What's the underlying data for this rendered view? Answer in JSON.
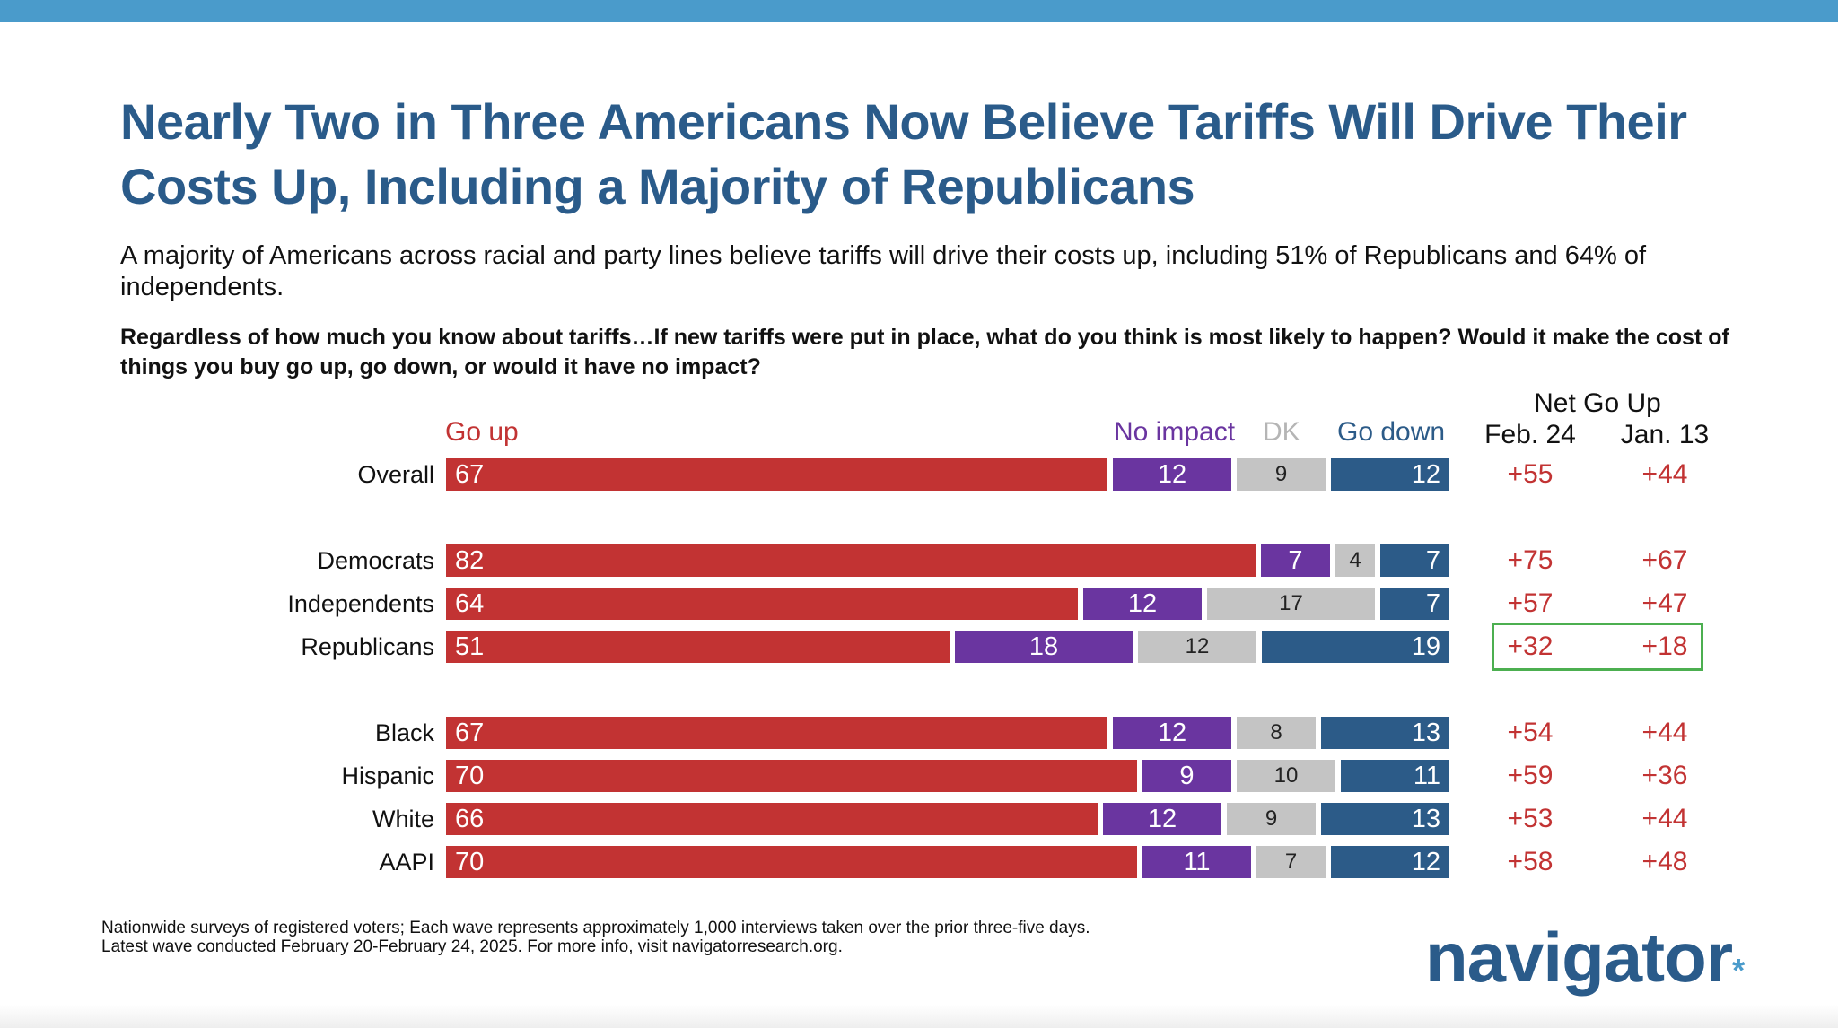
{
  "title": "Nearly Two in Three Americans Now Believe Tariffs Will Drive Their Costs Up, Including a Majority of Republicans",
  "subtitle": "A majority of Americans across racial and party lines believe tariffs will drive their costs up, including 51% of Republicans and 64% of independents.",
  "question": "Regardless of how much you know about tariffs…If new tariffs were put in place, what do you think is most likely to happen? Would it make the cost of things you buy go up, go down, or would it have no impact?",
  "colors": {
    "go_up": "#c23333",
    "no_impact": "#6a35a0",
    "dk": "#c4c4c4",
    "go_down": "#2c5b88",
    "net": "#c23333",
    "highlight": "#4caf50"
  },
  "chart_data": {
    "type": "bar",
    "orientation": "horizontal",
    "stacked": true,
    "categories": [
      "Overall",
      "Democrats",
      "Independents",
      "Republicans",
      "Black",
      "Hispanic",
      "White",
      "AAPI"
    ],
    "series": [
      {
        "name": "Go up",
        "values": [
          67,
          82,
          64,
          51,
          67,
          70,
          66,
          70
        ]
      },
      {
        "name": "No impact",
        "values": [
          12,
          7,
          12,
          18,
          12,
          9,
          12,
          11
        ]
      },
      {
        "name": "DK",
        "values": [
          9,
          4,
          17,
          12,
          8,
          10,
          9,
          7
        ]
      },
      {
        "name": "Go down",
        "values": [
          12,
          7,
          7,
          19,
          13,
          11,
          13,
          12
        ]
      }
    ],
    "net_header": "Net Go Up",
    "net_columns": [
      {
        "label": "Feb. 24",
        "values": [
          "+55",
          "+75",
          "+57",
          "+32",
          "+54",
          "+59",
          "+53",
          "+58"
        ]
      },
      {
        "label": "Jan. 13",
        "values": [
          "+44",
          "+67",
          "+47",
          "+18",
          "+44",
          "+36",
          "+44",
          "+48"
        ]
      }
    ],
    "highlighted_category": "Republicans",
    "legend_placement": "top",
    "grid": false
  },
  "footnote": {
    "line1": "Nationwide surveys of registered voters; Each wave represents approximately 1,000 interviews taken over the prior three-five days.",
    "line2": "Latest wave conducted February 20-February 24, 2025. For more info, visit navigatorresearch.org."
  },
  "logo": {
    "text": "navigator",
    "mark": "*"
  }
}
